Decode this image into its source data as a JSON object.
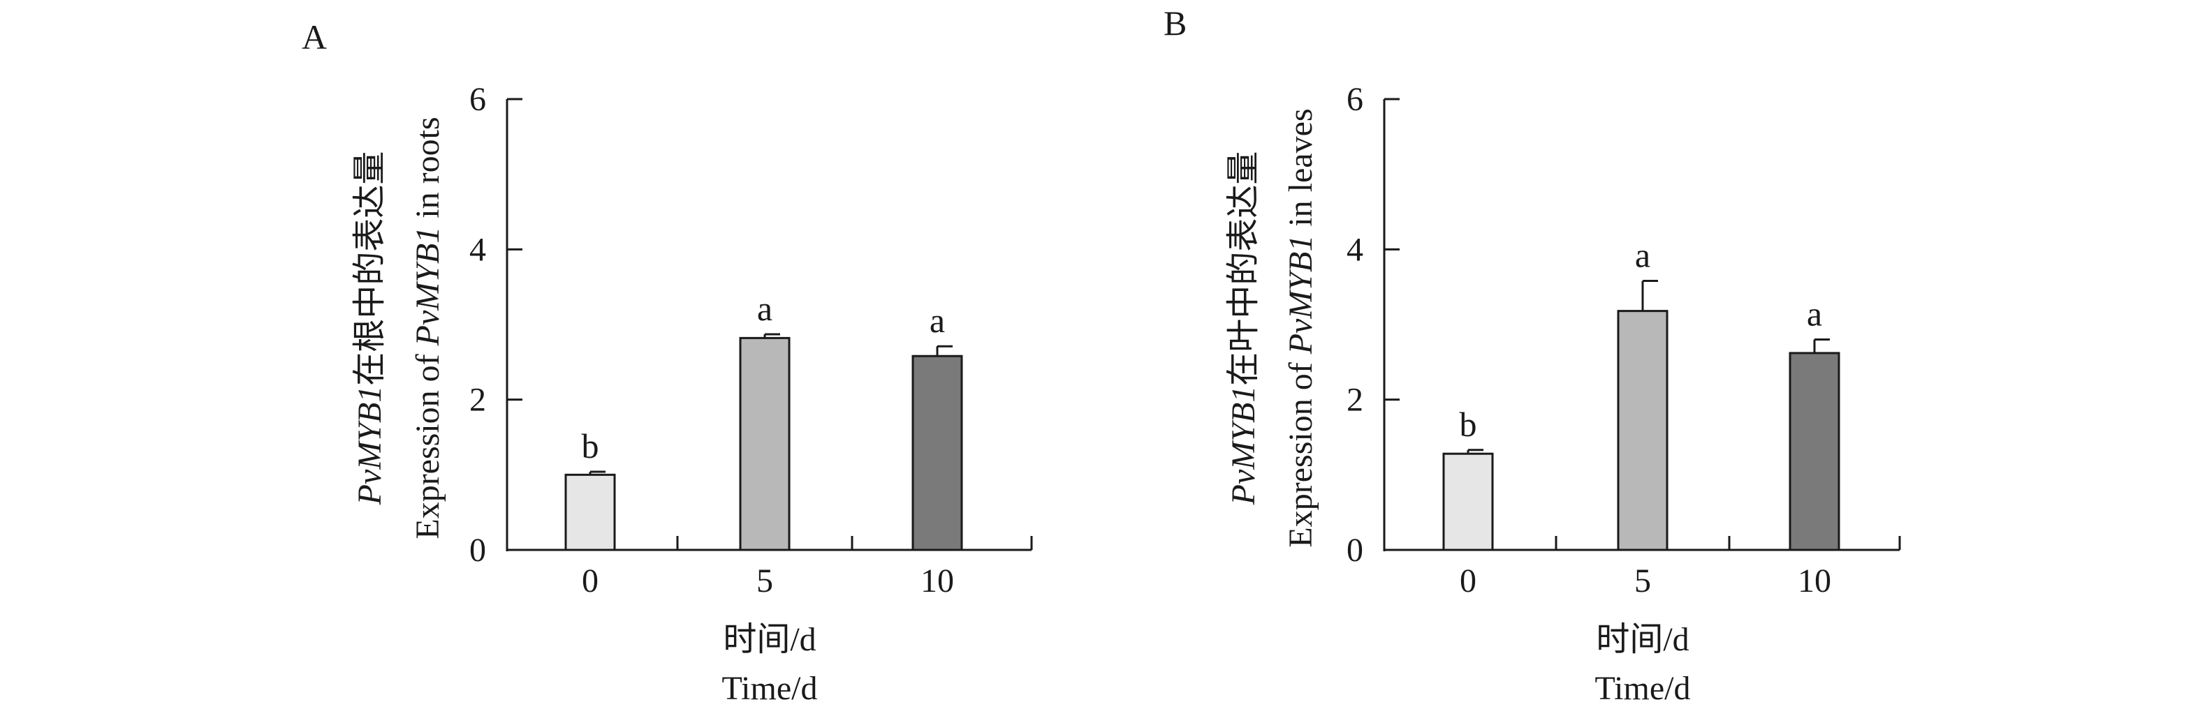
{
  "chart_data": [
    {
      "type": "bar",
      "panel_label": "A",
      "categories": [
        "0",
        "5",
        "10"
      ],
      "values": [
        1.0,
        2.82,
        2.58
      ],
      "errors": [
        0.04,
        0.05,
        0.13
      ],
      "significance": [
        "b",
        "a",
        "a"
      ],
      "colors": [
        "#e6e6e6",
        "#b8b8b8",
        "#7a7a7a"
      ],
      "ylabel_cn_prefix": "PvMYB1",
      "ylabel_cn_suffix": "在根中的表达量",
      "ylabel_en_prefix": "Expression of ",
      "ylabel_en_gene": "PvMYB1",
      "ylabel_en_suffix": " in roots",
      "xlabel_cn": "时间/d",
      "xlabel_en": "Time/d",
      "ylim": [
        0,
        6
      ],
      "yticks": [
        "0",
        "2",
        "4",
        "6"
      ]
    },
    {
      "type": "bar",
      "panel_label": "B",
      "categories": [
        "0",
        "5",
        "10"
      ],
      "values": [
        1.28,
        3.18,
        2.62
      ],
      "errors": [
        0.05,
        0.4,
        0.18
      ],
      "significance": [
        "b",
        "a",
        "a"
      ],
      "colors": [
        "#e6e6e6",
        "#b8b8b8",
        "#7a7a7a"
      ],
      "ylabel_cn_prefix": "PvMYB1",
      "ylabel_cn_suffix": "在叶中的表达量",
      "ylabel_en_prefix": "Expression of ",
      "ylabel_en_gene": "PvMYB1",
      "ylabel_en_suffix": " in leaves",
      "xlabel_cn": "时间/d",
      "xlabel_en": "Time/d",
      "ylim": [
        0,
        6
      ],
      "yticks": [
        "0",
        "2",
        "4",
        "6"
      ]
    }
  ]
}
